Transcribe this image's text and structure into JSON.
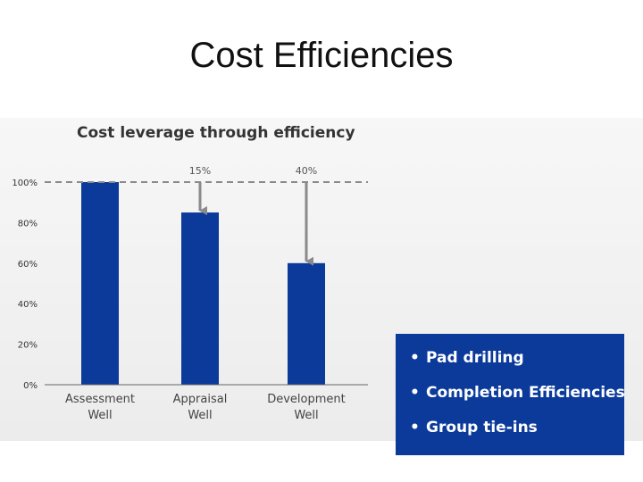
{
  "slide": {
    "title": "Cost Efficiencies"
  },
  "chart_data": {
    "type": "bar",
    "title": "Cost leverage through efficiency",
    "categories": [
      "Assessment Well",
      "Appraisal Well",
      "Development Well"
    ],
    "category_lines": [
      [
        "Assessment",
        "Well"
      ],
      [
        "Appraisal",
        "Well"
      ],
      [
        "Development",
        "Well"
      ]
    ],
    "values": [
      100,
      85,
      60
    ],
    "ylim": [
      0,
      100
    ],
    "yticks": [
      "0%",
      "20%",
      "40%",
      "60%",
      "80%",
      "100%"
    ],
    "reference_line": {
      "value": 100,
      "style": "dashed"
    },
    "annotations": [
      {
        "category": "Appraisal Well",
        "label": "15%"
      },
      {
        "category": "Development Well",
        "label": "40%"
      }
    ],
    "grid": false,
    "colors": {
      "bar": "#0b3a9a",
      "arrow": "#8a8a8a",
      "reference": "#8a8a8a"
    }
  },
  "info_box": {
    "items": [
      "Pad drilling",
      "Completion Efficiencies",
      "Group tie-ins"
    ],
    "bullet": "•",
    "color": "#0b3a9a"
  }
}
